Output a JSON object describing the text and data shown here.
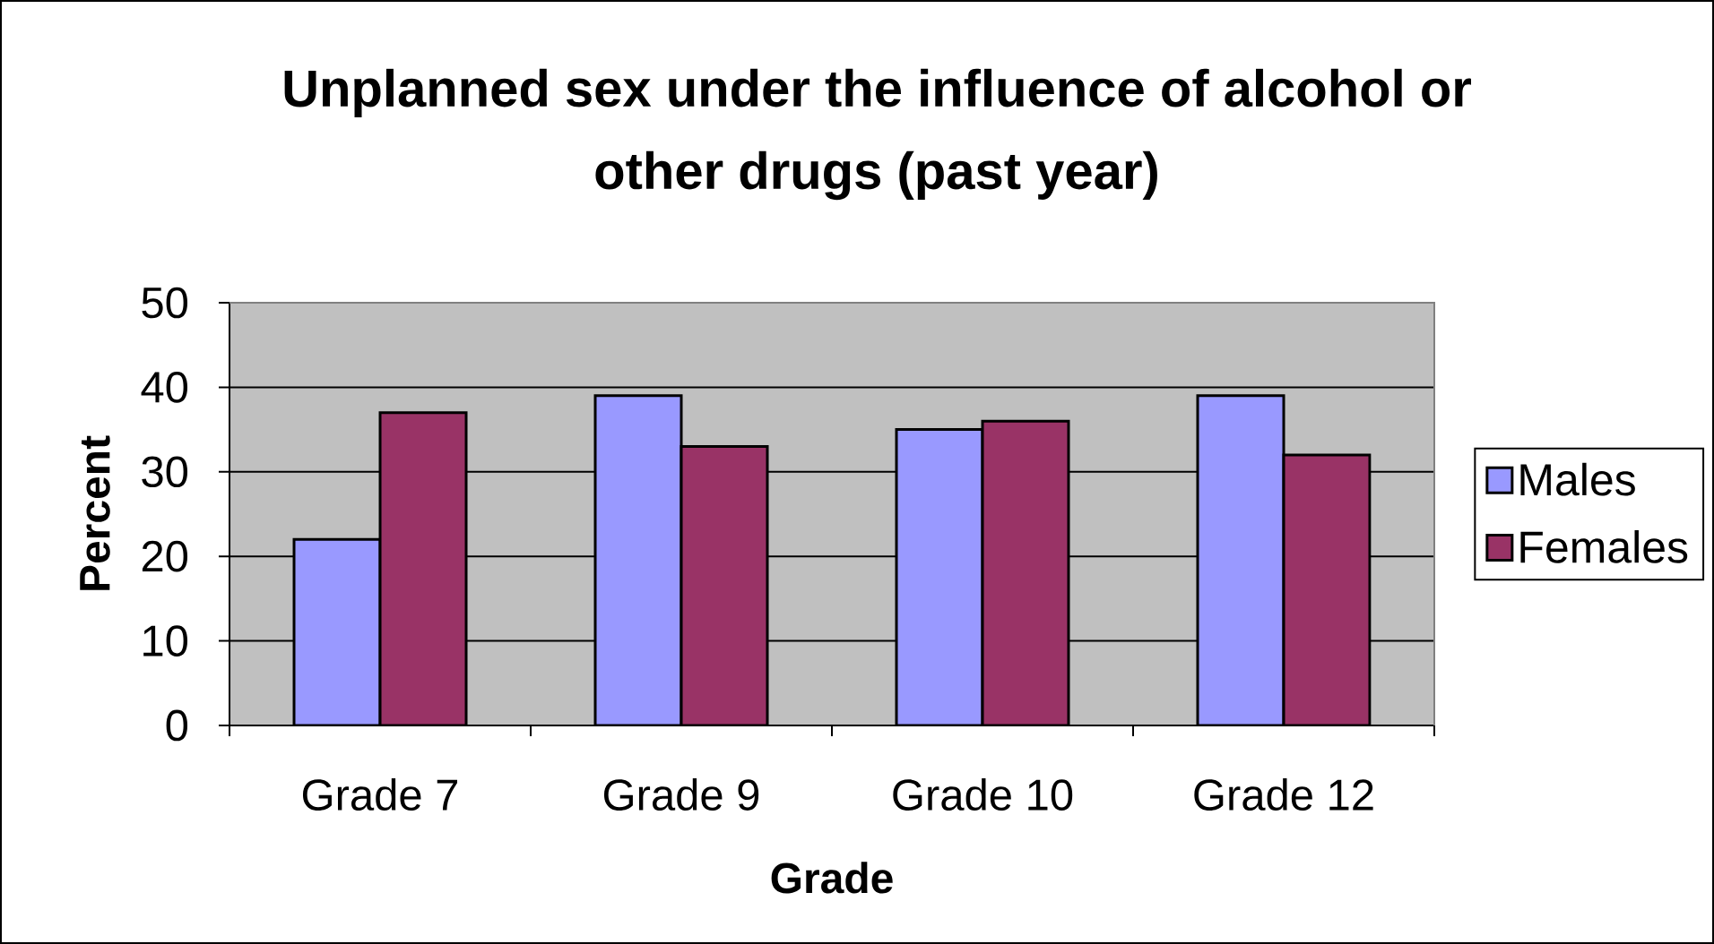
{
  "chart_data": {
    "type": "bar",
    "title": "Unplanned sex under the influence of alcohol or other drugs (past year)",
    "xlabel": "Grade",
    "ylabel": "Percent",
    "categories": [
      "Grade 7",
      "Grade 9",
      "Grade 10",
      "Grade 12"
    ],
    "series": [
      {
        "name": "Males",
        "color": "#9999ff",
        "values": [
          22,
          39,
          35,
          39
        ]
      },
      {
        "name": "Females",
        "color": "#993366",
        "values": [
          37,
          33,
          36,
          32
        ]
      }
    ],
    "ylim": [
      0,
      50
    ],
    "yticks": [
      0,
      10,
      20,
      30,
      40,
      50
    ],
    "grid": "y",
    "legend": "right"
  }
}
